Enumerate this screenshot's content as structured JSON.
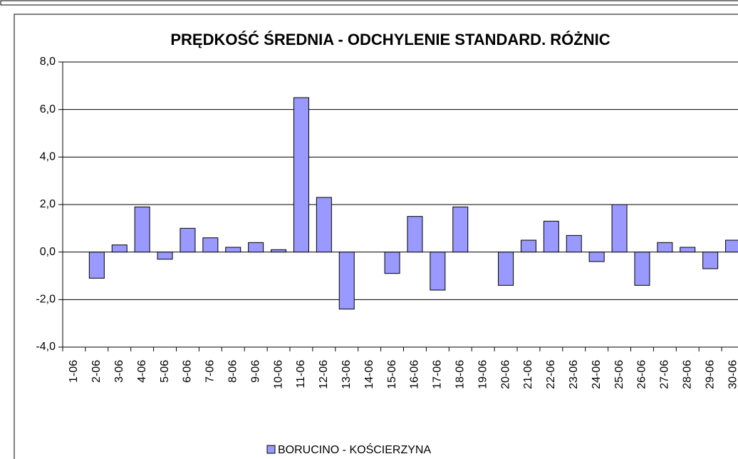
{
  "chart_data": {
    "type": "bar",
    "title": "PRĘDKOŚĆ ŚREDNIA - ODCHYLENIE STANDARD. RÓŻNIC",
    "categories": [
      "1-06",
      "2-06",
      "3-06",
      "4-06",
      "5-06",
      "6-06",
      "7-06",
      "8-06",
      "9-06",
      "10-06",
      "11-06",
      "12-06",
      "13-06",
      "14-06",
      "15-06",
      "16-06",
      "17-06",
      "18-06",
      "19-06",
      "20-06",
      "21-06",
      "22-06",
      "23-06",
      "24-06",
      "25-06",
      "26-06",
      "27-06",
      "28-06",
      "29-06",
      "30-06"
    ],
    "series": [
      {
        "name": "BORUCINO - KOŚCIERZYNA",
        "color": "#9999ff",
        "values": [
          null,
          -1.1,
          0.3,
          1.9,
          -0.3,
          1.0,
          0.6,
          0.2,
          0.4,
          0.1,
          6.5,
          2.3,
          -2.4,
          null,
          -0.9,
          1.5,
          -1.6,
          1.9,
          null,
          -1.4,
          0.5,
          1.3,
          0.7,
          -0.4,
          2.0,
          -1.4,
          0.4,
          0.2,
          -0.7,
          0.5
        ]
      }
    ],
    "ylim": [
      -4,
      8
    ],
    "yticks": [
      {
        "value": -4,
        "label": "-4,0"
      },
      {
        "value": -2,
        "label": "-2,0"
      },
      {
        "value": 0,
        "label": "0,0"
      },
      {
        "value": 2,
        "label": "2,0"
      },
      {
        "value": 4,
        "label": "4,0"
      },
      {
        "value": 6,
        "label": "6,0"
      },
      {
        "value": 8,
        "label": "8,0"
      }
    ],
    "grid": true,
    "legend": "bottom"
  }
}
